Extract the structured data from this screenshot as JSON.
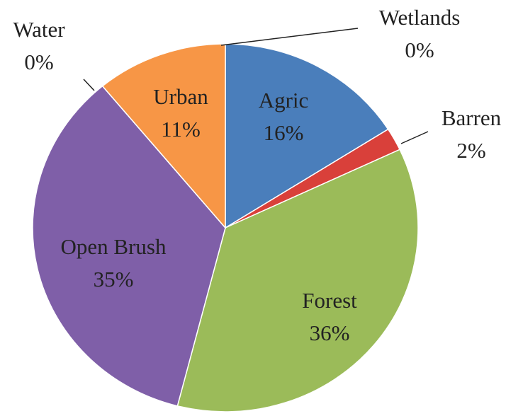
{
  "chart_data": {
    "type": "pie",
    "categories": [
      "Wetlands",
      "Agric",
      "Barren",
      "Forest",
      "Open Brush",
      "Water",
      "Urban"
    ],
    "values": [
      0,
      16,
      2,
      36,
      35,
      0,
      11
    ],
    "value_labels": [
      "0%",
      "16%",
      "2%",
      "36%",
      "35%",
      "0%",
      "11%"
    ],
    "colors": [
      "#4bacc6",
      "#4a7ebb",
      "#d9403a",
      "#9bbb59",
      "#7f5fa8",
      "#4bacc6",
      "#f79646"
    ]
  }
}
